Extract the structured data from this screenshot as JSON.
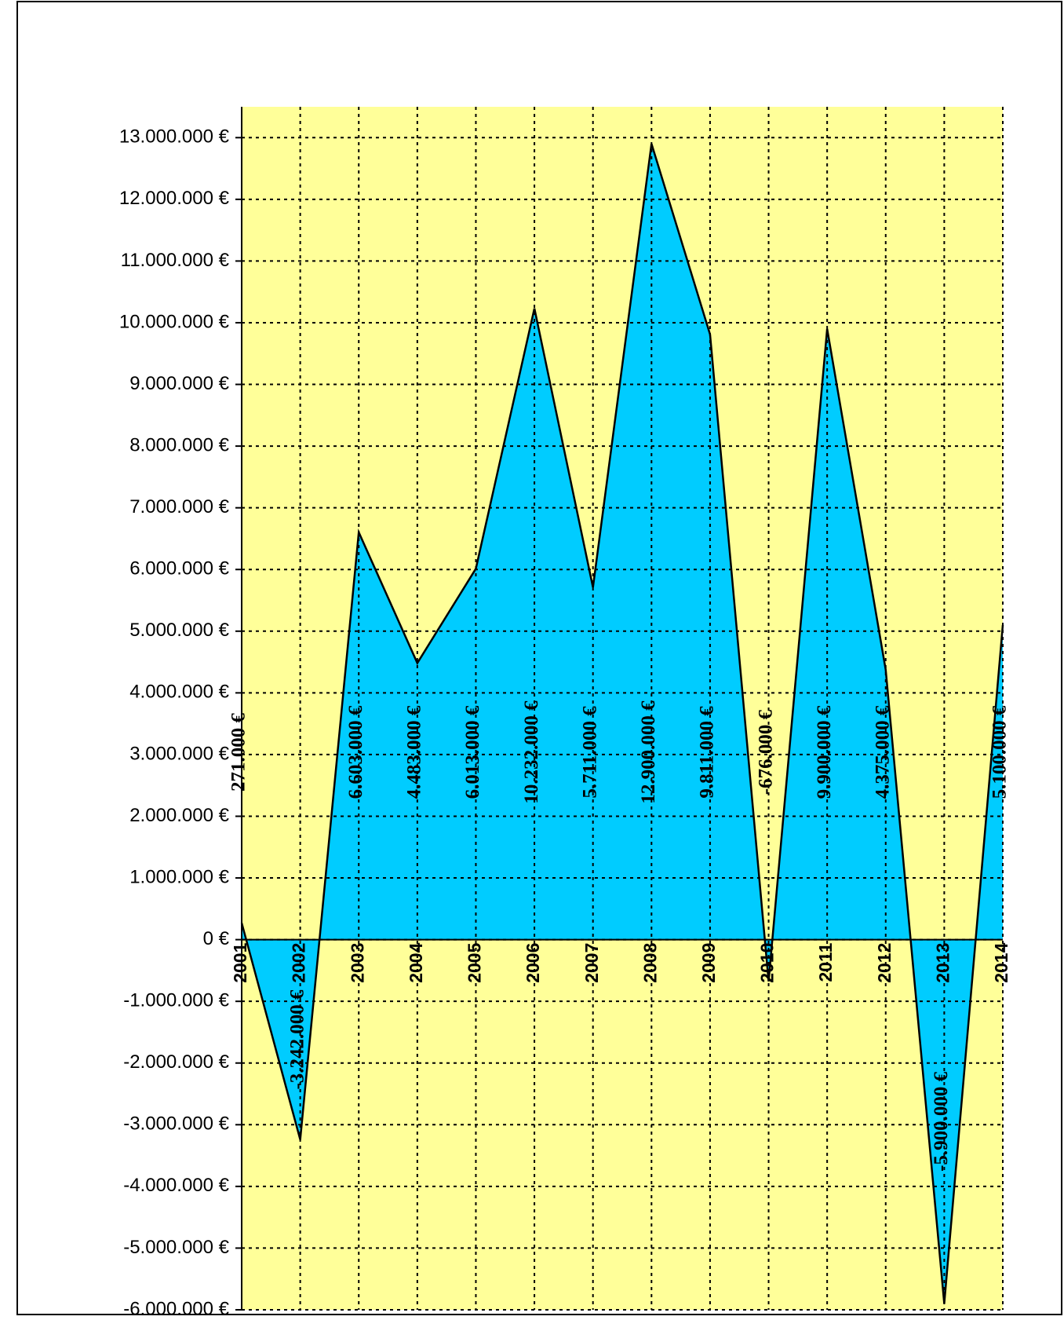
{
  "chart_data": {
    "type": "area",
    "categories": [
      "2001",
      "2002",
      "2003",
      "2004",
      "2005",
      "2006",
      "2007",
      "2008",
      "2009",
      "2010",
      "2011",
      "2012",
      "2013",
      "2014"
    ],
    "values": [
      271000,
      -3242000,
      6603000,
      4483000,
      6013000,
      10232000,
      5711000,
      12900000,
      9811000,
      -676000,
      9900000,
      4375000,
      -5900000,
      5100000
    ],
    "value_labels": [
      "271.000 €",
      "-3.242.000 €",
      "6.603.000 €",
      "4.483.000 €",
      "6.013.000 €",
      "10.232.000 €",
      "5.711.000 €",
      "12.900.000 €",
      "9.811.000 €",
      "-676.000 €",
      "9.900.000 €",
      "4.375.000 €",
      "-5.900.000 €",
      "5.100.000 €"
    ],
    "color": "#00ccff",
    "ylim": [
      -6000000,
      13500000
    ],
    "yticks": [
      {
        "value": -6000000,
        "label": "-6.000.000 €"
      },
      {
        "value": -5000000,
        "label": "-5.000.000 €"
      },
      {
        "value": -4000000,
        "label": "-4.000.000 €"
      },
      {
        "value": -3000000,
        "label": "-3.000.000 €"
      },
      {
        "value": -2000000,
        "label": "-2.000.000 €"
      },
      {
        "value": -1000000,
        "label": "-1.000.000 €"
      },
      {
        "value": 0,
        "label": "0 €"
      },
      {
        "value": 1000000,
        "label": "1.000.000 €"
      },
      {
        "value": 2000000,
        "label": "2.000.000 €"
      },
      {
        "value": 3000000,
        "label": "3.000.000 €"
      },
      {
        "value": 4000000,
        "label": "4.000.000 €"
      },
      {
        "value": 5000000,
        "label": "5.000.000 €"
      },
      {
        "value": 6000000,
        "label": "6.000.000 €"
      },
      {
        "value": 7000000,
        "label": "7.000.000 €"
      },
      {
        "value": 8000000,
        "label": "8.000.000 €"
      },
      {
        "value": 9000000,
        "label": "9.000.000 €"
      },
      {
        "value": 10000000,
        "label": "10.000.000 €"
      },
      {
        "value": 11000000,
        "label": "11.000.000 €"
      },
      {
        "value": 12000000,
        "label": "12.000.000 €"
      },
      {
        "value": 13000000,
        "label": "13.000.000 €"
      }
    ],
    "grid": true,
    "background": "#ffff99"
  }
}
